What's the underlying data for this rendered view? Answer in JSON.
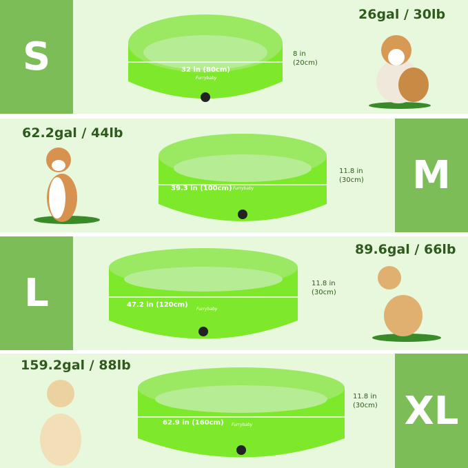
{
  "brand": "Furrybaby",
  "colors": {
    "background": "#e8f8dd",
    "size_block": "#7dbd58",
    "text": "#2f5a1d",
    "pool": "#7ee82a"
  },
  "sizes": [
    {
      "label": "S",
      "capacity": "26gal / 30lb",
      "diameter": "32 in (80cm)",
      "height_in": "8 in",
      "height_cm": "(20cm)"
    },
    {
      "label": "M",
      "capacity": "62.2gal / 44lb",
      "diameter": "39.3 in (100cm)",
      "height_in": "11.8 in",
      "height_cm": "(30cm)"
    },
    {
      "label": "L",
      "capacity": "89.6gal / 66lb",
      "diameter": "47.2 in (120cm)",
      "height_in": "11.8 in",
      "height_cm": "(30cm)"
    },
    {
      "label": "XL",
      "capacity": "159.2gal / 88lb",
      "diameter": "62.9 in (160cm)",
      "height_in": "11.8 in",
      "height_cm": "(30cm)"
    }
  ]
}
